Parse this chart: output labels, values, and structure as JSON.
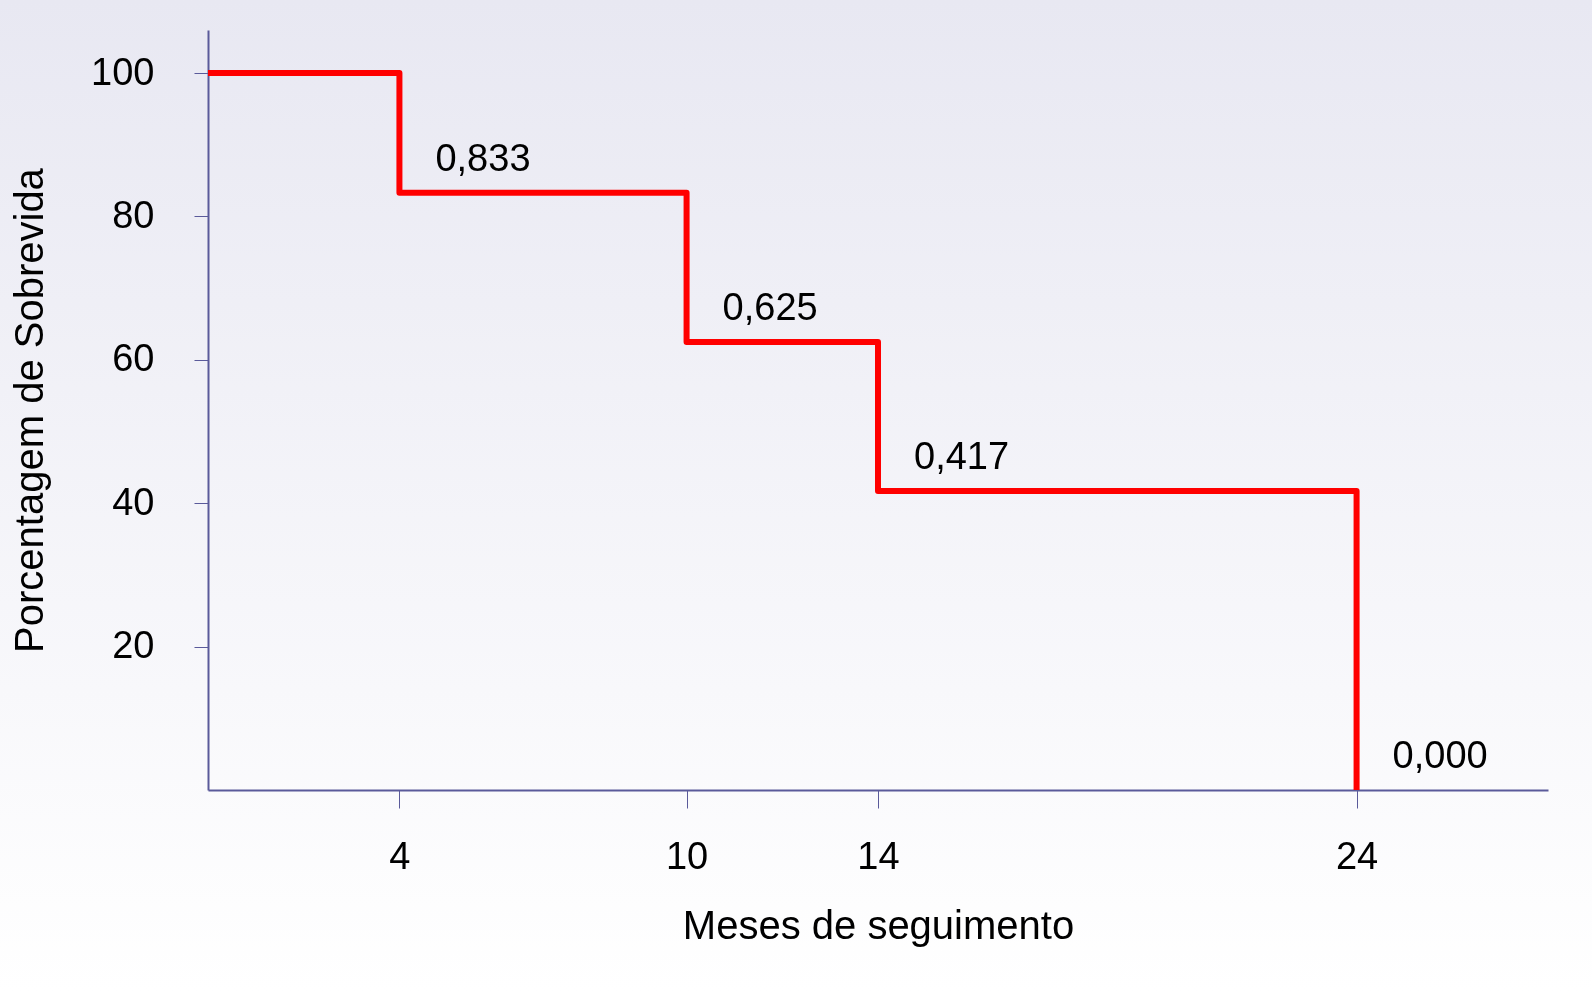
{
  "chart_data": {
    "type": "step",
    "xlabel": "Meses de seguimento",
    "ylabel": "Porcentagem de Sobrevida",
    "x": [
      0,
      4,
      10,
      14,
      24
    ],
    "series": [
      {
        "color": "#ff0000",
        "values": [
          100,
          83.3,
          62.5,
          41.7,
          0
        ]
      }
    ],
    "annotations": [
      {
        "text": "0,833",
        "x": 4,
        "y": 83.3
      },
      {
        "text": "0,625",
        "x": 10,
        "y": 62.5
      },
      {
        "text": "0,417",
        "x": 14,
        "y": 41.7
      },
      {
        "text": "0,000",
        "x": 24,
        "y": 0
      }
    ],
    "xlim": [
      0,
      28
    ],
    "xticks": [
      4,
      10,
      14,
      24
    ],
    "ylim": [
      0,
      106
    ],
    "yticks": [
      20,
      40,
      60,
      80,
      100
    ]
  }
}
